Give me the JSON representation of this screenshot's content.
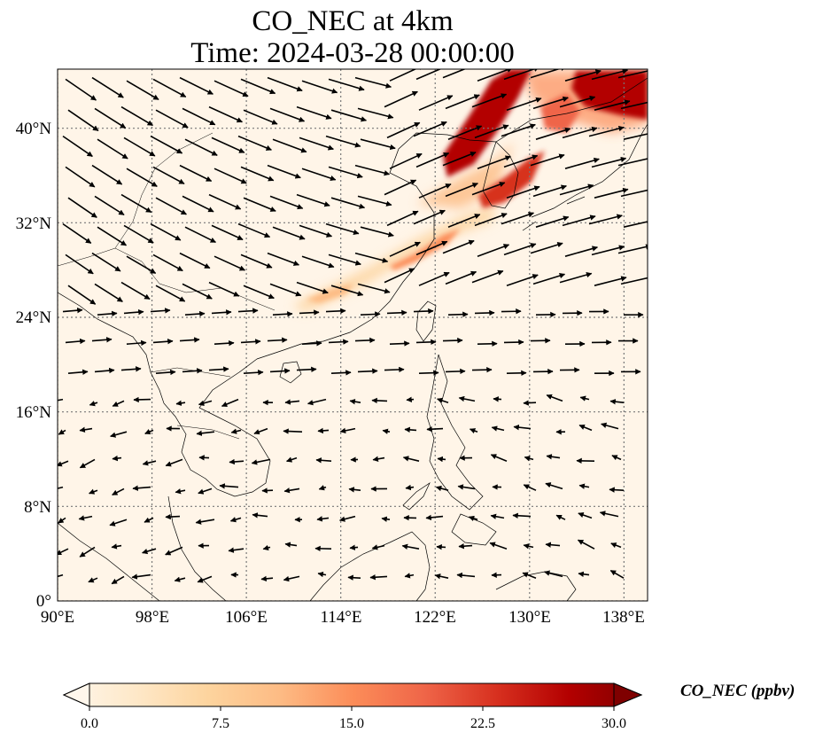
{
  "figure": {
    "title_line1": "CO_NEC at 4km",
    "title_line2": "Time: 2024-03-28 00:00:00"
  },
  "map": {
    "lon_ticks": [
      "90°E",
      "98°E",
      "106°E",
      "114°E",
      "122°E",
      "130°E",
      "138°E"
    ],
    "lat_ticks": [
      "0°",
      "8°N",
      "16°N",
      "24°N",
      "32°N",
      "40°N"
    ],
    "lon_values": [
      90,
      98,
      106,
      114,
      122,
      130,
      138
    ],
    "lat_values": [
      0,
      8,
      16,
      24,
      32,
      40
    ],
    "lon_range": [
      90,
      140
    ],
    "lat_range": [
      0,
      45
    ],
    "gridlines": "dotted",
    "overlay": "wind vectors"
  },
  "colorbar": {
    "label": "CO_NEC (ppbv)",
    "ticks": [
      "0.0",
      "7.5",
      "15.0",
      "22.5",
      "30.0"
    ],
    "tick_values": [
      0,
      7.5,
      15,
      22.5,
      30
    ],
    "range": [
      0,
      30
    ],
    "colormap": "OrRd",
    "colors": [
      "#fff7ec",
      "#fee8c8",
      "#fdd49e",
      "#fdbb84",
      "#fc8d59",
      "#ef6548",
      "#d7301f",
      "#b30000",
      "#7f0000"
    ]
  },
  "chart_data": {
    "type": "heatmap",
    "variable": "CO_NEC",
    "units": "ppbv",
    "high_concentration_regions": [
      {
        "lon": [
          124,
          131
        ],
        "lat": [
          34,
          45
        ],
        "level_ppbv": 30
      },
      {
        "lon": [
          133,
          140
        ],
        "lat": [
          41,
          45
        ],
        "level_ppbv": 30
      },
      {
        "lon": [
          127,
          131
        ],
        "lat": [
          33,
          36
        ],
        "level_ppbv": 26
      },
      {
        "lon": [
          118,
          126
        ],
        "lat": [
          28,
          33
        ],
        "level_ppbv": 14
      },
      {
        "lon": [
          112,
          119
        ],
        "lat": [
          25,
          28
        ],
        "level_ppbv": 9
      }
    ],
    "background_level_ppbv": 1.5
  }
}
